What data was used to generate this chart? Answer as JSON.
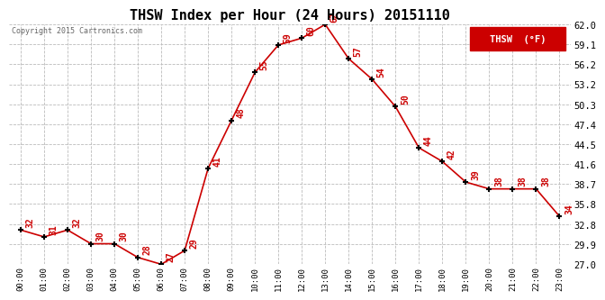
{
  "title": "THSW Index per Hour (24 Hours) 20151110",
  "copyright": "Copyright 2015 Cartronics.com",
  "legend_label": "THSW  (°F)",
  "hours": [
    "00:00",
    "01:00",
    "02:00",
    "03:00",
    "04:00",
    "05:00",
    "06:00",
    "07:00",
    "08:00",
    "09:00",
    "10:00",
    "11:00",
    "12:00",
    "13:00",
    "14:00",
    "15:00",
    "16:00",
    "17:00",
    "18:00",
    "19:00",
    "20:00",
    "21:00",
    "22:00",
    "23:00"
  ],
  "values": [
    32,
    31,
    32,
    30,
    30,
    28,
    27,
    29,
    41,
    48,
    55,
    59,
    60,
    62,
    57,
    54,
    50,
    44,
    42,
    39,
    38,
    38,
    38,
    34
  ],
  "line_color": "#cc0000",
  "marker_color": "#000000",
  "label_color": "#cc0000",
  "bg_color": "#ffffff",
  "grid_color": "#bbbbbb",
  "ytick_labels": [
    "27.0",
    "29.9",
    "32.8",
    "35.8",
    "38.7",
    "41.6",
    "44.5",
    "47.4",
    "50.3",
    "53.2",
    "56.2",
    "59.1",
    "62.0"
  ],
  "ytick_values": [
    27.0,
    29.9,
    32.8,
    35.8,
    38.7,
    41.6,
    44.5,
    47.4,
    50.3,
    53.2,
    56.2,
    59.1,
    62.0
  ],
  "ylim": [
    27.0,
    62.0
  ],
  "title_fontsize": 11,
  "legend_bg": "#cc0000",
  "legend_text_color": "#ffffff"
}
